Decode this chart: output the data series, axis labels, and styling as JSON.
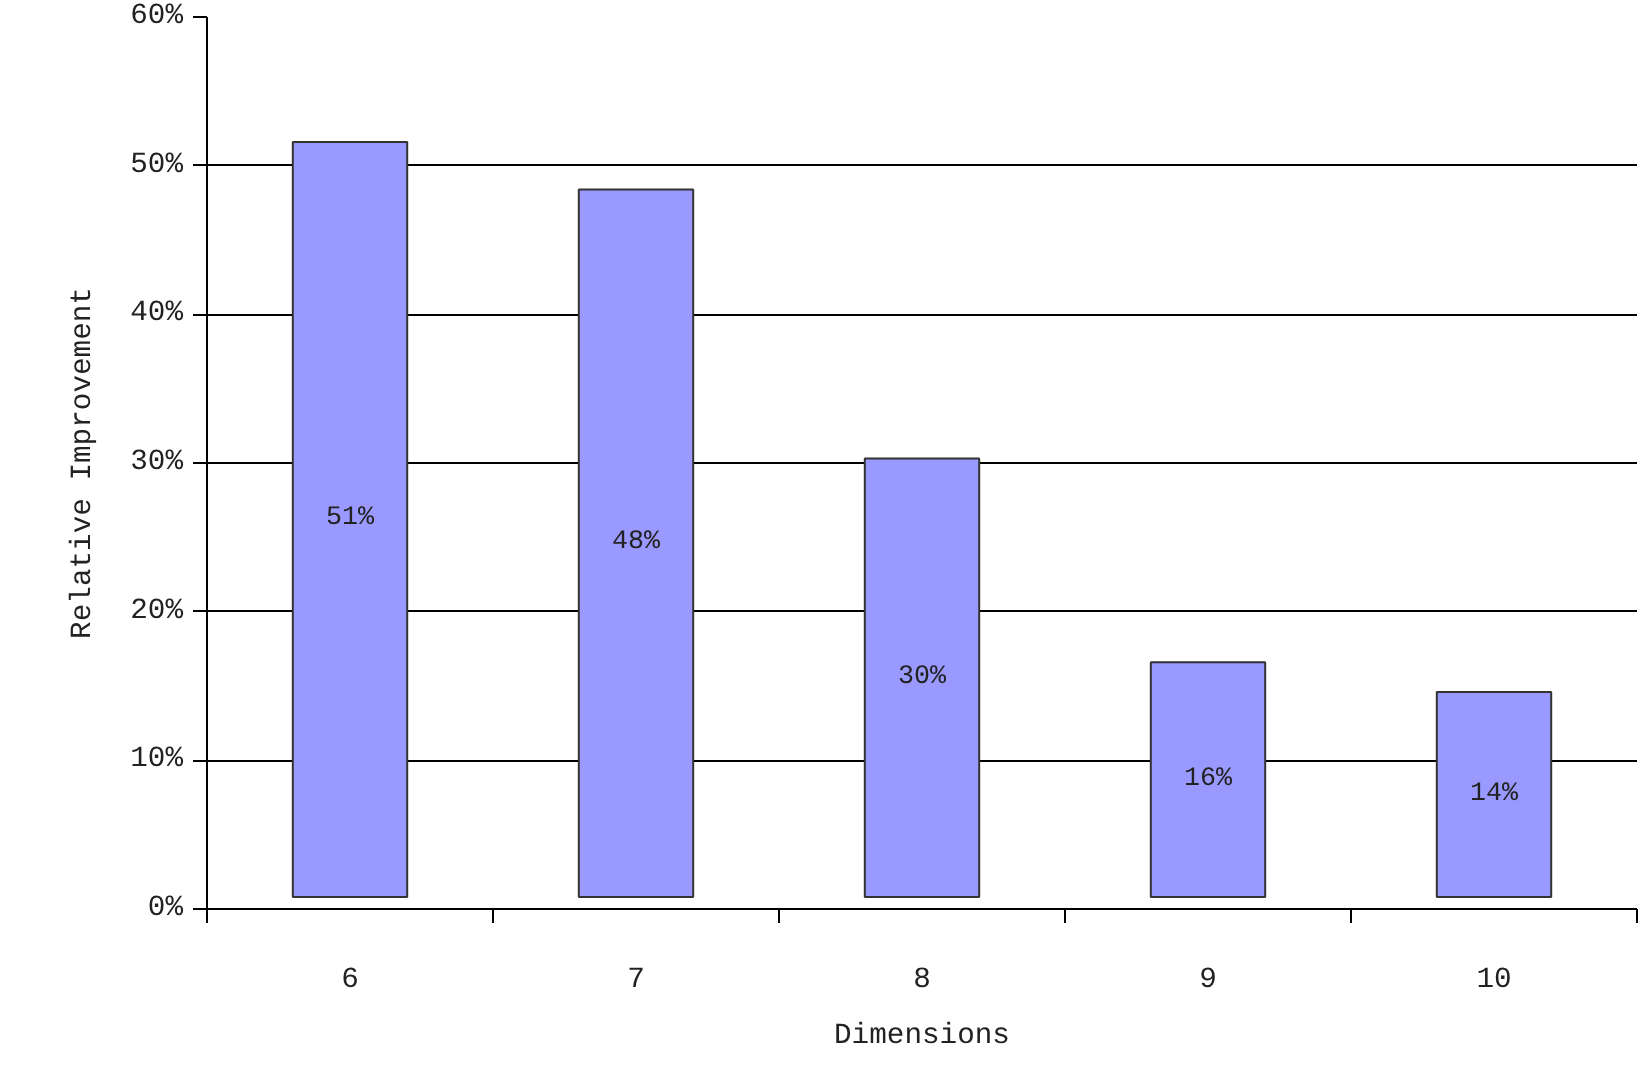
{
  "chart_data": {
    "type": "bar",
    "xlabel": "Dimensions",
    "ylabel": "Relative Improvement",
    "categories": [
      "6",
      "7",
      "8",
      "9",
      "10"
    ],
    "values": [
      50.8,
      47.6,
      29.5,
      15.8,
      13.8
    ],
    "base": [
      0.8,
      0.8,
      0.8,
      0.8,
      0.8
    ],
    "value_labels": [
      "51%",
      "48%",
      "30%",
      "16%",
      "14%"
    ],
    "color": "#9999ff",
    "ylim": [
      0,
      60
    ],
    "yticks": [
      {
        "value": 0,
        "label": "0%"
      },
      {
        "value": 10,
        "label": "10%"
      },
      {
        "value": 20,
        "label": "20%"
      },
      {
        "value": 30,
        "label": "30%"
      },
      {
        "value": 40,
        "label": "40%"
      },
      {
        "value": 50,
        "label": "50%"
      },
      {
        "value": 60,
        "label": "60%"
      }
    ],
    "grid": "y"
  }
}
